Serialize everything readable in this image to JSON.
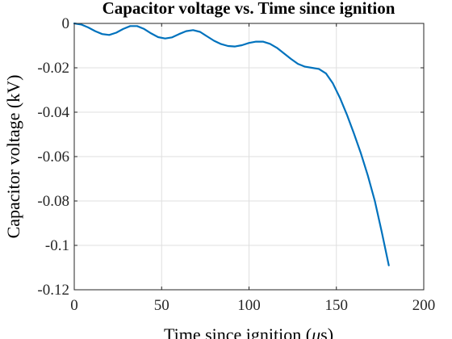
{
  "chart_data": {
    "type": "line",
    "title": "Capacitor voltage vs. Time since ignition",
    "xlabel": "Time since ignition (",
    "xlabel_mu": "μ",
    "xlabel_suffix": "s)",
    "ylabel": "Capacitor voltage (kV)",
    "xlim": [
      0,
      200
    ],
    "ylim": [
      -0.12,
      0
    ],
    "xticks": [
      0,
      50,
      100,
      150,
      200
    ],
    "xtick_labels": [
      "0",
      "50",
      "100",
      "150",
      "200"
    ],
    "yticks": [
      0,
      -0.02,
      -0.04,
      -0.06,
      -0.08,
      -0.1,
      -0.12
    ],
    "ytick_labels": [
      "0",
      "-0.02",
      "-0.04",
      "-0.06",
      "-0.08",
      "-0.1",
      "-0.12"
    ],
    "grid": true,
    "line_color": "#0072BD",
    "series": [
      {
        "x": [
          0,
          4,
          8,
          12,
          16,
          20,
          24,
          28,
          32,
          36,
          40,
          44,
          48,
          52,
          56,
          60,
          64,
          68,
          72,
          76,
          80,
          84,
          88,
          92,
          96,
          100,
          104,
          108,
          112,
          116,
          120,
          124,
          128,
          132,
          136,
          140,
          144,
          148,
          152,
          156,
          160,
          164,
          168,
          172,
          176,
          180
        ],
        "y": [
          0,
          -0.0005,
          -0.0018,
          -0.0035,
          -0.0048,
          -0.0052,
          -0.0042,
          -0.0025,
          -0.0012,
          -0.0012,
          -0.0025,
          -0.0045,
          -0.0062,
          -0.0068,
          -0.0063,
          -0.0048,
          -0.0035,
          -0.003,
          -0.0038,
          -0.0058,
          -0.0078,
          -0.0093,
          -0.0102,
          -0.0104,
          -0.0098,
          -0.0088,
          -0.0082,
          -0.0082,
          -0.0092,
          -0.011,
          -0.0135,
          -0.016,
          -0.0182,
          -0.0195,
          -0.02,
          -0.0205,
          -0.0225,
          -0.027,
          -0.0335,
          -0.041,
          -0.0495,
          -0.0585,
          -0.0685,
          -0.08,
          -0.094,
          -0.109
        ]
      }
    ]
  }
}
